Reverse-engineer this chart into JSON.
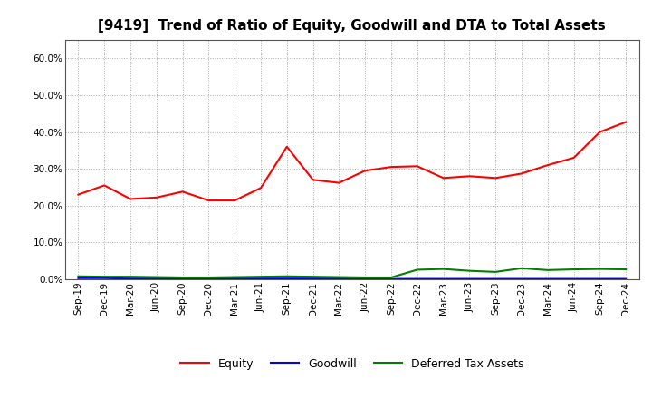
{
  "title": "[9419]  Trend of Ratio of Equity, Goodwill and DTA to Total Assets",
  "x_labels": [
    "Sep-19",
    "Dec-19",
    "Mar-20",
    "Jun-20",
    "Sep-20",
    "Dec-20",
    "Mar-21",
    "Jun-21",
    "Sep-21",
    "Dec-21",
    "Mar-22",
    "Jun-22",
    "Sep-22",
    "Dec-22",
    "Mar-23",
    "Jun-23",
    "Sep-23",
    "Dec-23",
    "Mar-24",
    "Jun-24",
    "Sep-24",
    "Dec-24"
  ],
  "equity": [
    0.23,
    0.255,
    0.218,
    0.222,
    0.238,
    0.214,
    0.214,
    0.248,
    0.36,
    0.27,
    0.262,
    0.295,
    0.305,
    0.307,
    0.275,
    0.28,
    0.275,
    0.287,
    0.31,
    0.33,
    0.4,
    0.427
  ],
  "goodwill": [
    0.003,
    0.003,
    0.002,
    0.002,
    0.002,
    0.002,
    0.002,
    0.002,
    0.002,
    0.002,
    0.002,
    0.001,
    0.001,
    0.001,
    0.001,
    0.001,
    0.001,
    0.001,
    0.001,
    0.001,
    0.001,
    0.001
  ],
  "dta": [
    0.008,
    0.007,
    0.007,
    0.006,
    0.005,
    0.005,
    0.006,
    0.007,
    0.008,
    0.007,
    0.006,
    0.005,
    0.005,
    0.026,
    0.028,
    0.023,
    0.02,
    0.03,
    0.025,
    0.027,
    0.028,
    0.027
  ],
  "equity_color": "#FF0000",
  "goodwill_color": "#0000FF",
  "dta_color": "#008000",
  "ylim": [
    0.0,
    0.65
  ],
  "yticks": [
    0.0,
    0.1,
    0.2,
    0.3,
    0.4,
    0.5,
    0.6
  ],
  "background_color": "#FFFFFF",
  "plot_bg_color": "#FFFFFF",
  "grid_color": "#AAAAAA",
  "title_fontsize": 11,
  "tick_fontsize": 7.5,
  "legend_fontsize": 9
}
